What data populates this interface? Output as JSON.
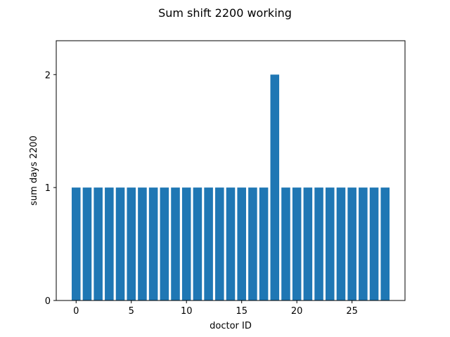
{
  "chart_data": {
    "type": "bar",
    "title": "Sum shift 2200 working",
    "xlabel": "doctor ID",
    "ylabel": "sum days 2200",
    "x": [
      0,
      1,
      2,
      3,
      4,
      5,
      6,
      7,
      8,
      9,
      10,
      11,
      12,
      13,
      14,
      15,
      16,
      17,
      18,
      19,
      20,
      21,
      22,
      23,
      24,
      25,
      26,
      27,
      28
    ],
    "values": [
      1,
      1,
      1,
      1,
      1,
      1,
      1,
      1,
      1,
      1,
      1,
      1,
      1,
      1,
      1,
      1,
      1,
      1,
      2,
      1,
      1,
      1,
      1,
      1,
      1,
      1,
      1,
      1,
      1
    ],
    "xlim": [
      -1.8,
      29.8
    ],
    "ylim": [
      0,
      2.3
    ],
    "x_ticks": [
      0,
      5,
      10,
      15,
      20,
      25
    ],
    "y_ticks": [
      0,
      1,
      2
    ],
    "bar_color": "#1f77b4",
    "grid": false
  }
}
